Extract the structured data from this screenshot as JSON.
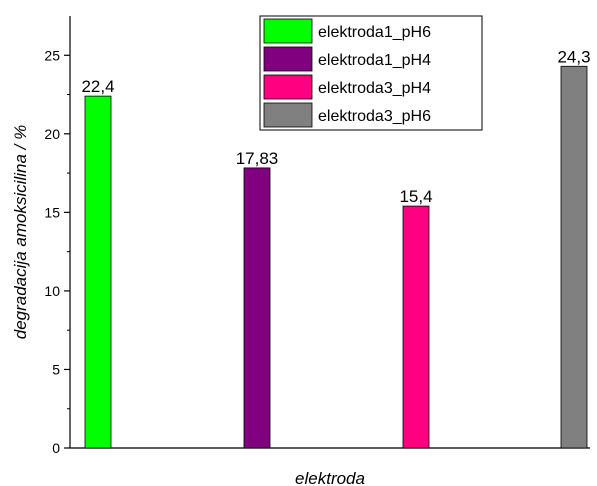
{
  "chart_data": {
    "type": "bar",
    "title": "",
    "xlabel": "elektroda",
    "ylabel": "degradacija amoksicilina / %",
    "ylim": [
      0,
      27.5
    ],
    "yticks": [
      0,
      5,
      10,
      15,
      20,
      25
    ],
    "ytick_labels": [
      "0",
      "5",
      "10",
      "15",
      "20",
      "25"
    ],
    "grid": false,
    "legend_position": "top-right",
    "series": [
      {
        "name": "elektroda1_pH6",
        "value": 22.4,
        "label": "22,4",
        "color": "#00ff00"
      },
      {
        "name": "elektroda1_pH4",
        "value": 17.83,
        "label": "17,83",
        "color": "#800080"
      },
      {
        "name": "elektroda3_pH4",
        "value": 15.4,
        "label": "15,4",
        "color": "#ff0080"
      },
      {
        "name": "elektroda3_pH6",
        "value": 24.3,
        "label": "24,3",
        "color": "#808080"
      }
    ]
  }
}
